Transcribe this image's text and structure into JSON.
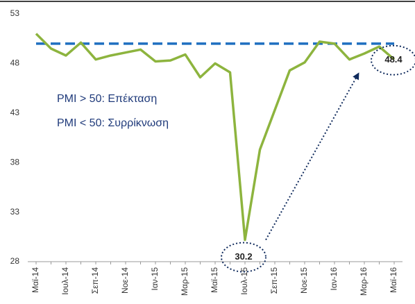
{
  "chart_data": {
    "type": "line",
    "categories": [
      "Μαϊ-14",
      null,
      "Ιουλ-14",
      null,
      "Σεπ-14",
      null,
      "Νοε-14",
      null,
      "Ιαν-15",
      null,
      "Μαρ-15",
      null,
      "Μαϊ-15",
      null,
      "Ιουλ-15",
      null,
      "Σεπ-15",
      null,
      "Νοε-15",
      null,
      "Ιαν-16",
      null,
      "Μαρ-16",
      null,
      "Μαϊ-16"
    ],
    "series": [
      {
        "name": "PMI",
        "color": "#8db43e",
        "values": [
          51.0,
          49.5,
          48.8,
          50.1,
          48.4,
          48.8,
          49.1,
          49.4,
          48.2,
          48.3,
          48.9,
          46.6,
          48.0,
          47.1,
          30.2,
          39.3,
          43.3,
          47.3,
          48.1,
          50.2,
          50.0,
          48.4,
          49.0,
          49.7,
          48.4
        ]
      }
    ],
    "reference_line": {
      "value": 50,
      "color": "#1f6fc0"
    },
    "annotations": [
      "PMI > 50: Επέκταση",
      "PMI < 50: Συρρίκνωση"
    ],
    "labeled_points": [
      14,
      24
    ],
    "ylim": [
      28,
      53
    ],
    "yticks": [
      28,
      33,
      38,
      43,
      48,
      53
    ],
    "grid": false
  }
}
